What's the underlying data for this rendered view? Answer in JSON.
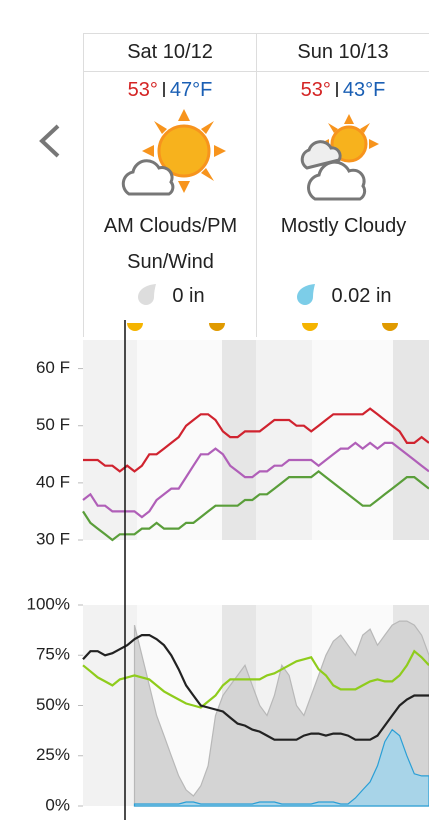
{
  "days": [
    {
      "date": "Sat 10/12",
      "high": "53°",
      "low": "47°F",
      "condition": "AM Clouds/PM Sun/Wind",
      "precip": "0 in"
    },
    {
      "date": "Sun 10/13",
      "high": "53°",
      "low": "43°F",
      "condition": "Mostly Cloudy",
      "precip": "0.02 in"
    }
  ],
  "chart_data": [
    {
      "type": "line",
      "ylim": [
        30,
        65
      ],
      "yticks": [
        {
          "value": 30,
          "label": "30 F"
        },
        {
          "value": 40,
          "label": "40 F"
        },
        {
          "value": 50,
          "label": "50 F"
        },
        {
          "value": 60,
          "label": "60 F"
        }
      ],
      "series": [
        {
          "color": "#d0232f",
          "values": [
            44,
            44,
            44,
            43,
            43,
            42,
            43,
            42,
            43,
            45,
            45,
            46,
            47,
            48,
            50,
            51,
            52,
            52,
            51,
            49,
            48,
            48,
            49,
            49,
            49,
            50,
            51,
            51,
            51,
            50,
            50,
            49,
            50,
            51,
            52,
            52,
            52,
            52,
            52,
            53,
            52,
            51,
            50,
            49,
            47,
            47,
            48,
            47
          ]
        },
        {
          "color": "#b05fb8",
          "values": [
            37,
            38,
            36,
            36,
            35,
            35,
            35,
            35,
            34,
            35,
            37,
            38,
            39,
            39,
            41,
            43,
            45,
            45,
            46,
            45,
            43,
            42,
            41,
            41,
            42,
            42,
            43,
            43,
            44,
            44,
            44,
            44,
            43,
            44,
            45,
            46,
            46,
            47,
            46,
            47,
            46,
            47,
            47,
            46,
            45,
            44,
            43,
            42
          ]
        },
        {
          "color": "#5a9e3a",
          "values": [
            35,
            33,
            32,
            31,
            30,
            31,
            31,
            31,
            32,
            32,
            33,
            32,
            32,
            32,
            33,
            33,
            34,
            35,
            36,
            36,
            36,
            36,
            37,
            37,
            38,
            38,
            39,
            40,
            41,
            41,
            41,
            41,
            42,
            41,
            40,
            39,
            38,
            37,
            36,
            36,
            37,
            38,
            39,
            40,
            41,
            41,
            40,
            39
          ]
        }
      ]
    },
    {
      "type": "line",
      "ylim": [
        0,
        100
      ],
      "yticks": [
        {
          "value": 0,
          "label": "0%"
        },
        {
          "value": 25,
          "label": "25%"
        },
        {
          "value": 50,
          "label": "50%"
        },
        {
          "value": 75,
          "label": "75%"
        },
        {
          "value": 100,
          "label": "100%"
        }
      ],
      "series": [
        {
          "color": "#b8b8b8",
          "fill": "#d4d4d4",
          "values": [
            null,
            null,
            null,
            null,
            null,
            null,
            null,
            90,
            75,
            60,
            45,
            35,
            25,
            15,
            8,
            5,
            10,
            20,
            45,
            55,
            60,
            65,
            70,
            60,
            50,
            45,
            55,
            70,
            65,
            50,
            45,
            55,
            65,
            75,
            82,
            85,
            80,
            75,
            85,
            88,
            80,
            85,
            90,
            92,
            92,
            90,
            85,
            75
          ]
        },
        {
          "color": "#2a9fd6",
          "fill": "#a8d4e8",
          "values": [
            null,
            null,
            null,
            null,
            null,
            null,
            null,
            1,
            1,
            1,
            1,
            1,
            1,
            1,
            2,
            2,
            1,
            1,
            1,
            1,
            1,
            1,
            1,
            1,
            2,
            2,
            2,
            1,
            1,
            1,
            1,
            1,
            2,
            2,
            2,
            1,
            1,
            4,
            8,
            12,
            20,
            32,
            38,
            35,
            25,
            16,
            15,
            15
          ]
        },
        {
          "color": "#8fcc1c",
          "values": [
            70,
            67,
            64,
            62,
            60,
            63,
            64,
            65,
            64,
            63,
            60,
            57,
            55,
            53,
            51,
            50,
            49,
            52,
            55,
            60,
            63,
            63,
            63,
            63,
            63,
            65,
            66,
            68,
            70,
            72,
            73,
            74,
            68,
            65,
            60,
            58,
            58,
            58,
            60,
            62,
            63,
            62,
            62,
            65,
            70,
            77,
            74,
            70
          ]
        },
        {
          "color": "#222222",
          "values": [
            73,
            77,
            77,
            75,
            76,
            78,
            80,
            83,
            85,
            85,
            83,
            80,
            75,
            68,
            60,
            55,
            50,
            49,
            48,
            47,
            44,
            41,
            40,
            38,
            37,
            35,
            33,
            33,
            33,
            33,
            35,
            36,
            36,
            35,
            36,
            36,
            35,
            33,
            33,
            33,
            35,
            40,
            45,
            50,
            53,
            55,
            55,
            55
          ]
        }
      ]
    }
  ]
}
